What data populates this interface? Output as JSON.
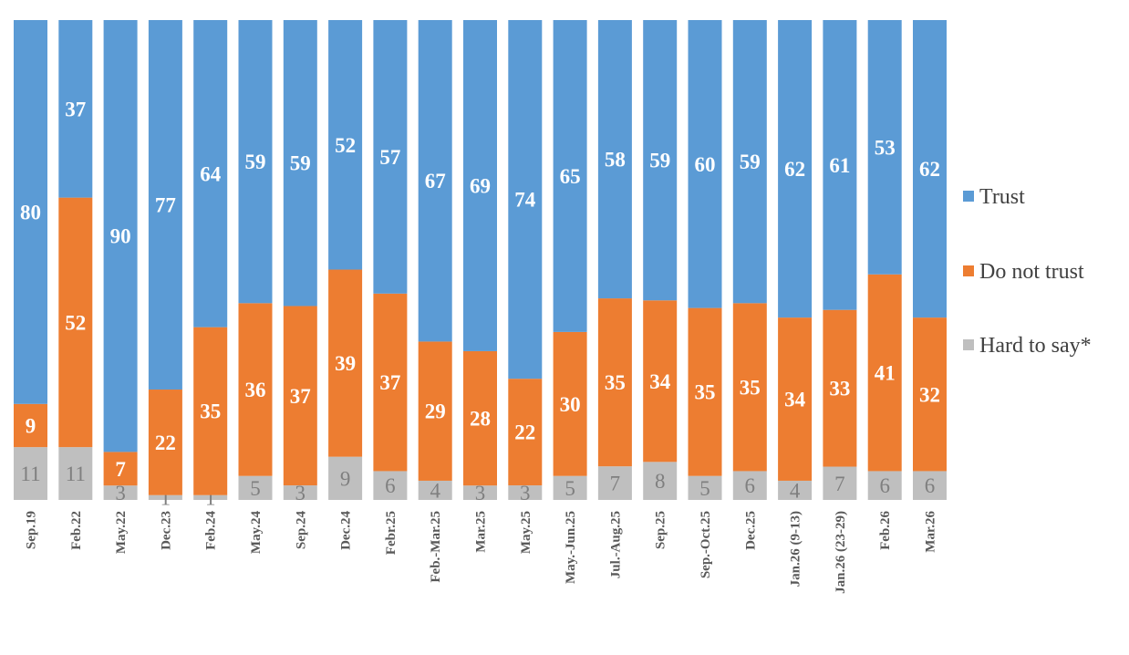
{
  "chart_data": {
    "type": "bar",
    "stacked": true,
    "title": "",
    "xlabel": "",
    "ylabel": "",
    "ylim": [
      0,
      100
    ],
    "grid": false,
    "legend_position": "right",
    "categories": [
      "Sep.19",
      "Feb.22",
      "May.22",
      "Dec.23",
      "Feb.24",
      "May.24",
      "Sep.24",
      "Dec.24",
      "Febr.25",
      "Feb.-Mar.25",
      "Mar.25",
      "May.25",
      "May.-Jun.25",
      "Jul.-Aug.25",
      "Sep.25",
      "Sep.-Oct.25",
      "Dec.25",
      "Jan.26 (9-13)",
      "Jan.26 (23-29)",
      "Feb.26",
      "Mar.26"
    ],
    "series": [
      {
        "name": "Hard to say*",
        "color": "#bfbfbf",
        "label_color": "#7f7f7f",
        "values": [
          11,
          11,
          3,
          1,
          1,
          5,
          3,
          9,
          6,
          4,
          3,
          3,
          5,
          7,
          8,
          5,
          6,
          4,
          7,
          6,
          6
        ]
      },
      {
        "name": "Do not trust",
        "color": "#ed7d31",
        "label_color": "#ffffff",
        "values": [
          9,
          52,
          7,
          22,
          35,
          36,
          37,
          39,
          37,
          29,
          28,
          22,
          30,
          35,
          34,
          35,
          35,
          34,
          33,
          41,
          32
        ]
      },
      {
        "name": "Trust",
        "color": "#5b9bd5",
        "label_color": "#ffffff",
        "values": [
          80,
          37,
          90,
          77,
          64,
          59,
          59,
          52,
          57,
          67,
          69,
          74,
          65,
          58,
          59,
          60,
          59,
          62,
          61,
          53,
          62
        ]
      }
    ],
    "legend_order": [
      "Trust",
      "Do not trust",
      "Hard to say*"
    ]
  }
}
